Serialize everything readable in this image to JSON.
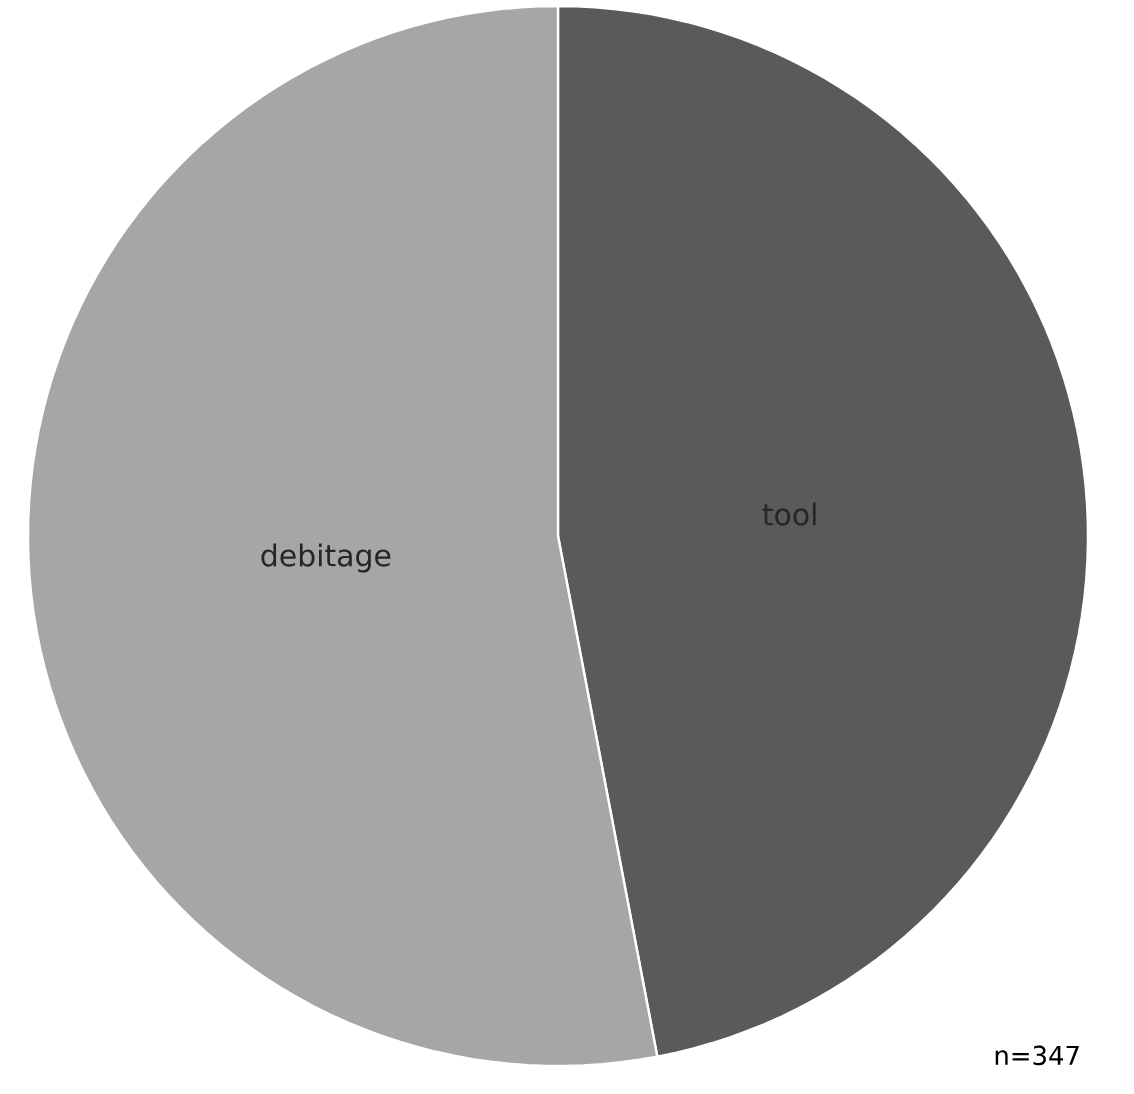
{
  "chart_data": {
    "type": "pie",
    "categories": [
      "tool",
      "debitage"
    ],
    "values": [
      47,
      53
    ],
    "colors": [
      "#5a5a5a",
      "#a6a6a6"
    ],
    "annotations": [
      "n=347"
    ]
  }
}
